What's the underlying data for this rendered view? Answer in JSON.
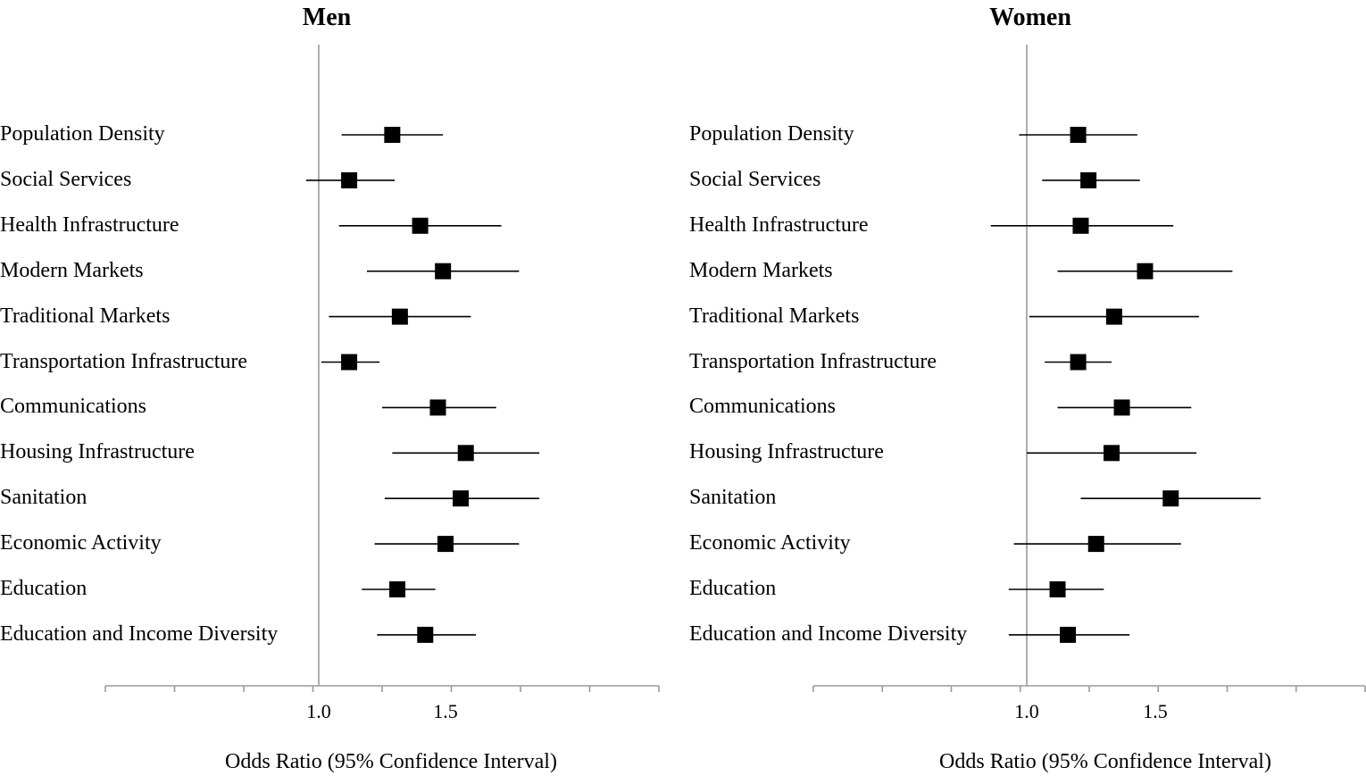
{
  "chart_data": [
    {
      "type": "forest",
      "title": "Men",
      "xlabel": "Odds Ratio (95% Confidence Interval)",
      "x_ticks": [
        "1.0",
        "1.5"
      ],
      "reference_line": 1.0,
      "grid": false,
      "rows": [
        {
          "label": "Population Density",
          "or": 1.29,
          "lo": 1.09,
          "hi": 1.49
        },
        {
          "label": "Social Services",
          "or": 1.12,
          "lo": 0.95,
          "hi": 1.3
        },
        {
          "label": "Health Infrastructure",
          "or": 1.4,
          "lo": 1.08,
          "hi": 1.72
        },
        {
          "label": "Modern Markets",
          "or": 1.49,
          "lo": 1.19,
          "hi": 1.79
        },
        {
          "label": "Traditional Markets",
          "or": 1.32,
          "lo": 1.04,
          "hi": 1.6
        },
        {
          "label": "Transportation Infrastructure",
          "or": 1.12,
          "lo": 1.01,
          "hi": 1.24
        },
        {
          "label": "Communications",
          "or": 1.47,
          "lo": 1.25,
          "hi": 1.7
        },
        {
          "label": "Housing Infrastructure",
          "or": 1.58,
          "lo": 1.29,
          "hi": 1.87
        },
        {
          "label": "Sanitation",
          "or": 1.56,
          "lo": 1.26,
          "hi": 1.87
        },
        {
          "label": "Economic Activity",
          "or": 1.5,
          "lo": 1.22,
          "hi": 1.79
        },
        {
          "label": "Education",
          "or": 1.31,
          "lo": 1.17,
          "hi": 1.46
        },
        {
          "label": "Education and Income Diversity",
          "or": 1.42,
          "lo": 1.23,
          "hi": 1.62
        }
      ]
    },
    {
      "type": "forest",
      "title": "Women",
      "xlabel": "Odds Ratio (95% Confidence Interval)",
      "x_ticks": [
        "1.0",
        "1.5"
      ],
      "reference_line": 1.0,
      "grid": false,
      "rows": [
        {
          "label": "Population Density",
          "or": 1.2,
          "lo": 0.97,
          "hi": 1.43
        },
        {
          "label": "Social Services",
          "or": 1.24,
          "lo": 1.06,
          "hi": 1.44
        },
        {
          "label": "Health Infrastructure",
          "or": 1.21,
          "lo": 0.86,
          "hi": 1.57
        },
        {
          "label": "Modern Markets",
          "or": 1.46,
          "lo": 1.12,
          "hi": 1.8
        },
        {
          "label": "Traditional Markets",
          "or": 1.34,
          "lo": 1.01,
          "hi": 1.67
        },
        {
          "label": "Transportation Infrastructure",
          "or": 1.2,
          "lo": 1.07,
          "hi": 1.33
        },
        {
          "label": "Communications",
          "or": 1.37,
          "lo": 1.12,
          "hi": 1.64
        },
        {
          "label": "Housing Infrastructure",
          "or": 1.33,
          "lo": 1.0,
          "hi": 1.66
        },
        {
          "label": "Sanitation",
          "or": 1.56,
          "lo": 1.21,
          "hi": 1.91
        },
        {
          "label": "Economic Activity",
          "or": 1.27,
          "lo": 0.95,
          "hi": 1.6
        },
        {
          "label": "Education",
          "or": 1.12,
          "lo": 0.93,
          "hi": 1.3
        },
        {
          "label": "Education and Income Diversity",
          "or": 1.16,
          "lo": 0.93,
          "hi": 1.4
        }
      ]
    }
  ]
}
